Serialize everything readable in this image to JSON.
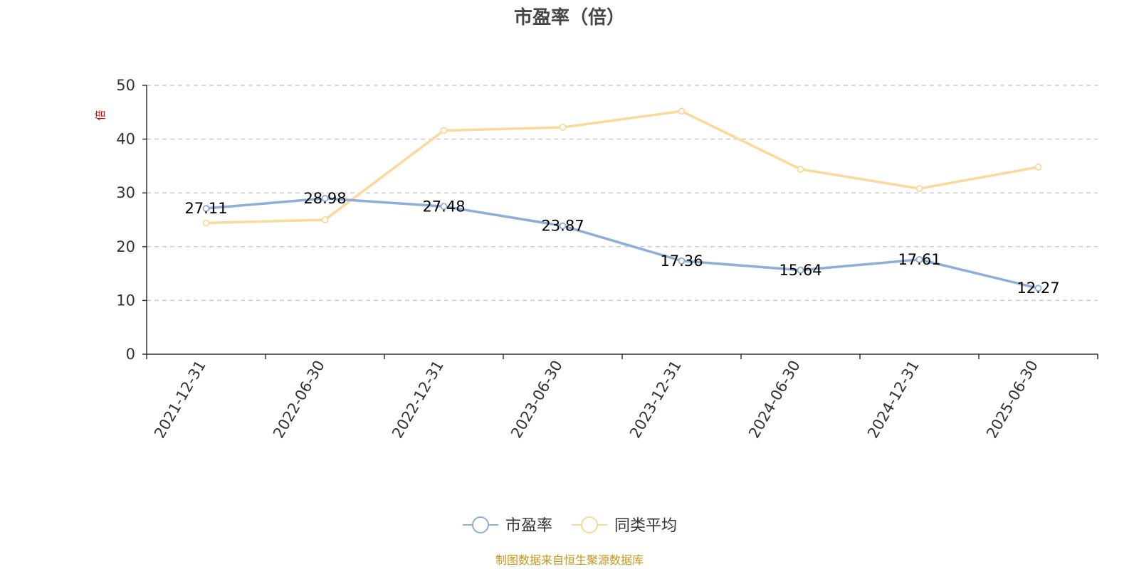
{
  "chart_data": {
    "type": "line",
    "title": "市盈率（倍）",
    "y_unit": "倍",
    "x": [
      "2021-12-31",
      "2022-06-30",
      "2022-12-31",
      "2023-06-30",
      "2023-12-31",
      "2024-06-30",
      "2024-12-31",
      "2025-06-30"
    ],
    "ylim": [
      0,
      50
    ],
    "yticks": [
      0,
      10,
      20,
      30,
      40,
      50
    ],
    "grid": true,
    "legend_position": "bottom",
    "series": [
      {
        "name": "市盈率",
        "color": "#8eadd9",
        "values": [
          27.11,
          28.98,
          27.48,
          23.87,
          17.36,
          15.64,
          17.61,
          12.27
        ],
        "show_labels": true
      },
      {
        "name": "同类平均",
        "color": "#fad99a",
        "values": [
          24.4,
          25.0,
          41.6,
          42.2,
          45.2,
          34.4,
          30.8,
          34.8
        ],
        "show_labels": false
      }
    ],
    "source": "制图数据来自恒生聚源数据库"
  }
}
